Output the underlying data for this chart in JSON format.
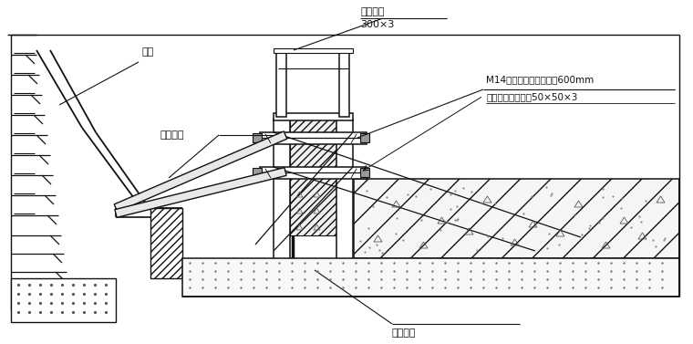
{
  "background": "#ffffff",
  "line_color": "#111111",
  "text_color": "#111111",
  "figsize": [
    7.6,
    3.77
  ],
  "dpi": 100,
  "labels": {
    "bipc": "边坡",
    "gangguandingcheng": "钢管顶撑",
    "zhishuigangban": "止水钢板",
    "size1": "300×3",
    "m14": "M14止水螺杆，纵向间距600mm",
    "zhishuipian": "止水片双面焊接，50×50×3",
    "gangjiandiji": "钢筋地锚"
  }
}
